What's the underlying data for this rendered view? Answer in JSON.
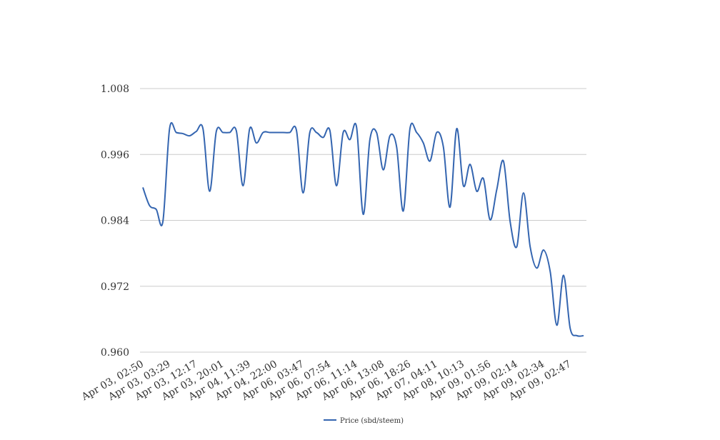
{
  "chart_data": {
    "type": "line",
    "categories": [
      "Apr 03, 02:50",
      null,
      null,
      null,
      "Apr 03, 03:29",
      null,
      null,
      null,
      "Apr 03, 12:17",
      null,
      null,
      null,
      "Apr 03, 20:01",
      null,
      null,
      null,
      "Apr 04, 11:39",
      null,
      null,
      null,
      "Apr 04, 22:00",
      null,
      null,
      null,
      "Apr 06, 03:47",
      null,
      null,
      null,
      "Apr 06, 07:54",
      null,
      null,
      null,
      "Apr 06, 11:14",
      null,
      null,
      null,
      "Apr 06, 13:08",
      null,
      null,
      null,
      "Apr 06, 18:26",
      null,
      null,
      null,
      "Apr 07, 04:11",
      null,
      null,
      null,
      "Apr 08, 10:13",
      null,
      null,
      null,
      "Apr 09, 01:56",
      null,
      null,
      null,
      "Apr 09, 02:14",
      null,
      null,
      null,
      "Apr 09, 02:34",
      null,
      null,
      null,
      "Apr 09, 02:47",
      null,
      null
    ],
    "series": [
      {
        "name": "Price (sbd/steem)",
        "color": "#3465b0",
        "values": [
          0.99,
          0.9867,
          0.986,
          0.9838,
          1.0007,
          1.0,
          0.9998,
          0.9994,
          1.0002,
          1.0007,
          0.9893,
          1.0002,
          1.0,
          1.0,
          1.0003,
          0.9903,
          1.0007,
          0.9981,
          1.0,
          1.0,
          1.0,
          1.0,
          1.0,
          1.0004,
          0.989,
          1.0,
          1.0,
          0.9991,
          1.0004,
          0.9903,
          1.0,
          0.9987,
          1.001,
          0.9851,
          0.9987,
          1.0,
          0.9932,
          0.9994,
          0.9974,
          0.9857,
          1.0007,
          1.0,
          0.9981,
          0.9948,
          1.0,
          0.9974,
          0.9864,
          1.0007,
          0.9903,
          0.9942,
          0.9893,
          0.9916,
          0.9841,
          0.9896,
          0.9948,
          0.9838,
          0.9792,
          0.989,
          0.9792,
          0.9753,
          0.9786,
          0.9747,
          0.9649,
          0.974,
          0.9643,
          0.963,
          0.963
        ]
      }
    ],
    "ylim": [
      0.96,
      1.008
    ],
    "yticks": [
      {
        "value": 0.96,
        "label": "0.960"
      },
      0.972,
      0.984,
      0.996,
      1.008
    ],
    "grid": true,
    "legend": "bottom"
  }
}
